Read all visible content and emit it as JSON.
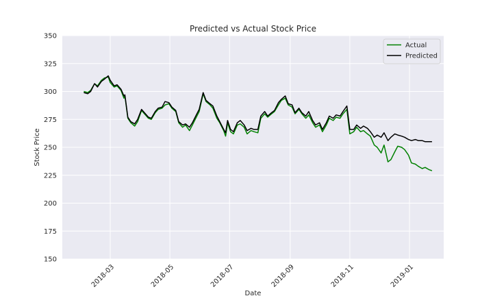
{
  "chart_data": {
    "type": "line",
    "title": "Predicted vs Actual Stock Price",
    "xlabel": "Date",
    "ylabel": "Stock Price",
    "ylim": [
      150,
      350
    ],
    "xlim": [
      "2018-01-11",
      "2019-02-05"
    ],
    "yticks": [
      150,
      175,
      200,
      225,
      250,
      275,
      300,
      325,
      350
    ],
    "xticks": [
      "2018-03",
      "2018-05",
      "2018-07",
      "2018-09",
      "2018-11",
      "2019-01"
    ],
    "grid": true,
    "legend_position": "upper right",
    "series": [
      {
        "name": "Actual",
        "color": "#008000",
        "points": [
          [
            "2018-02-02",
            300
          ],
          [
            "2018-02-06",
            299
          ],
          [
            "2018-02-09",
            301
          ],
          [
            "2018-02-13",
            307
          ],
          [
            "2018-02-16",
            305
          ],
          [
            "2018-02-20",
            310
          ],
          [
            "2018-02-23",
            312
          ],
          [
            "2018-02-27",
            313
          ],
          [
            "2018-03-01",
            308
          ],
          [
            "2018-03-05",
            304
          ],
          [
            "2018-03-08",
            305
          ],
          [
            "2018-03-12",
            301
          ],
          [
            "2018-03-15",
            294
          ],
          [
            "2018-03-16",
            296
          ],
          [
            "2018-03-19",
            276
          ],
          [
            "2018-03-22",
            272
          ],
          [
            "2018-03-26",
            269
          ],
          [
            "2018-03-29",
            273
          ],
          [
            "2018-04-02",
            283
          ],
          [
            "2018-04-05",
            280
          ],
          [
            "2018-04-09",
            276
          ],
          [
            "2018-04-12",
            275
          ],
          [
            "2018-04-16",
            281
          ],
          [
            "2018-04-19",
            284
          ],
          [
            "2018-04-23",
            285
          ],
          [
            "2018-04-26",
            288
          ],
          [
            "2018-04-30",
            289
          ],
          [
            "2018-05-03",
            285
          ],
          [
            "2018-05-07",
            282
          ],
          [
            "2018-05-10",
            272
          ],
          [
            "2018-05-14",
            268
          ],
          [
            "2018-05-17",
            270
          ],
          [
            "2018-05-21",
            265
          ],
          [
            "2018-05-24",
            270
          ],
          [
            "2018-05-28",
            277
          ],
          [
            "2018-05-31",
            282
          ],
          [
            "2018-06-04",
            298
          ],
          [
            "2018-06-07",
            291
          ],
          [
            "2018-06-11",
            288
          ],
          [
            "2018-06-14",
            285
          ],
          [
            "2018-06-18",
            276
          ],
          [
            "2018-06-21",
            272
          ],
          [
            "2018-06-25",
            265
          ],
          [
            "2018-06-27",
            260
          ],
          [
            "2018-06-29",
            272
          ],
          [
            "2018-07-02",
            264
          ],
          [
            "2018-07-05",
            262
          ],
          [
            "2018-07-09",
            270
          ],
          [
            "2018-07-12",
            271
          ],
          [
            "2018-07-16",
            268
          ],
          [
            "2018-07-19",
            262
          ],
          [
            "2018-07-23",
            265
          ],
          [
            "2018-07-26",
            264
          ],
          [
            "2018-07-30",
            263
          ],
          [
            "2018-08-02",
            276
          ],
          [
            "2018-08-06",
            280
          ],
          [
            "2018-08-09",
            277
          ],
          [
            "2018-08-13",
            280
          ],
          [
            "2018-08-16",
            282
          ],
          [
            "2018-08-20",
            288
          ],
          [
            "2018-08-23",
            292
          ],
          [
            "2018-08-27",
            294
          ],
          [
            "2018-08-30",
            288
          ],
          [
            "2018-09-03",
            286
          ],
          [
            "2018-09-06",
            280
          ],
          [
            "2018-09-10",
            284
          ],
          [
            "2018-09-13",
            280
          ],
          [
            "2018-09-17",
            276
          ],
          [
            "2018-09-20",
            279
          ],
          [
            "2018-09-24",
            272
          ],
          [
            "2018-09-27",
            268
          ],
          [
            "2018-10-01",
            270
          ],
          [
            "2018-10-04",
            264
          ],
          [
            "2018-10-08",
            270
          ],
          [
            "2018-10-11",
            276
          ],
          [
            "2018-10-15",
            274
          ],
          [
            "2018-10-18",
            277
          ],
          [
            "2018-10-22",
            276
          ],
          [
            "2018-10-25",
            280
          ],
          [
            "2018-10-29",
            284
          ],
          [
            "2018-11-01",
            262
          ],
          [
            "2018-11-05",
            264
          ],
          [
            "2018-11-08",
            268
          ],
          [
            "2018-11-12",
            264
          ],
          [
            "2018-11-15",
            265
          ],
          [
            "2018-11-19",
            262
          ],
          [
            "2018-11-22",
            260
          ],
          [
            "2018-11-26",
            252
          ],
          [
            "2018-11-29",
            250
          ],
          [
            "2018-12-03",
            245
          ],
          [
            "2018-12-06",
            252
          ],
          [
            "2018-12-10",
            237
          ],
          [
            "2018-12-13",
            239
          ],
          [
            "2018-12-17",
            246
          ],
          [
            "2018-12-20",
            251
          ],
          [
            "2018-12-24",
            250
          ],
          [
            "2018-12-27",
            248
          ],
          [
            "2018-12-31",
            243
          ],
          [
            "2019-01-03",
            236
          ],
          [
            "2019-01-07",
            235
          ],
          [
            "2019-01-10",
            233
          ],
          [
            "2019-01-14",
            231
          ],
          [
            "2019-01-17",
            232
          ],
          [
            "2019-01-21",
            230
          ],
          [
            "2019-01-24",
            229
          ]
        ]
      },
      {
        "name": "Predicted",
        "color": "#000000",
        "points": [
          [
            "2018-02-02",
            299
          ],
          [
            "2018-02-06",
            298
          ],
          [
            "2018-02-09",
            300
          ],
          [
            "2018-02-13",
            307
          ],
          [
            "2018-02-16",
            304
          ],
          [
            "2018-02-20",
            309
          ],
          [
            "2018-02-23",
            311
          ],
          [
            "2018-02-27",
            314
          ],
          [
            "2018-03-01",
            310
          ],
          [
            "2018-03-05",
            305
          ],
          [
            "2018-03-08",
            306
          ],
          [
            "2018-03-12",
            302
          ],
          [
            "2018-03-15",
            296
          ],
          [
            "2018-03-16",
            297
          ],
          [
            "2018-03-19",
            277
          ],
          [
            "2018-03-22",
            273
          ],
          [
            "2018-03-26",
            271
          ],
          [
            "2018-03-29",
            275
          ],
          [
            "2018-04-02",
            284
          ],
          [
            "2018-04-05",
            281
          ],
          [
            "2018-04-09",
            277
          ],
          [
            "2018-04-12",
            276
          ],
          [
            "2018-04-16",
            282
          ],
          [
            "2018-04-19",
            285
          ],
          [
            "2018-04-23",
            286
          ],
          [
            "2018-04-26",
            291
          ],
          [
            "2018-04-30",
            290
          ],
          [
            "2018-05-03",
            286
          ],
          [
            "2018-05-07",
            283
          ],
          [
            "2018-05-10",
            273
          ],
          [
            "2018-05-14",
            270
          ],
          [
            "2018-05-17",
            271
          ],
          [
            "2018-05-21",
            268
          ],
          [
            "2018-05-24",
            272
          ],
          [
            "2018-05-28",
            279
          ],
          [
            "2018-05-31",
            284
          ],
          [
            "2018-06-04",
            299
          ],
          [
            "2018-06-07",
            292
          ],
          [
            "2018-06-11",
            289
          ],
          [
            "2018-06-14",
            287
          ],
          [
            "2018-06-18",
            278
          ],
          [
            "2018-06-21",
            273
          ],
          [
            "2018-06-25",
            266
          ],
          [
            "2018-06-27",
            263
          ],
          [
            "2018-06-29",
            274
          ],
          [
            "2018-07-02",
            266
          ],
          [
            "2018-07-05",
            264
          ],
          [
            "2018-07-09",
            272
          ],
          [
            "2018-07-12",
            274
          ],
          [
            "2018-07-16",
            270
          ],
          [
            "2018-07-19",
            265
          ],
          [
            "2018-07-23",
            267
          ],
          [
            "2018-07-26",
            266
          ],
          [
            "2018-07-30",
            266
          ],
          [
            "2018-08-02",
            278
          ],
          [
            "2018-08-06",
            282
          ],
          [
            "2018-08-09",
            278
          ],
          [
            "2018-08-13",
            281
          ],
          [
            "2018-08-16",
            283
          ],
          [
            "2018-08-20",
            290
          ],
          [
            "2018-08-23",
            293
          ],
          [
            "2018-08-27",
            296
          ],
          [
            "2018-08-30",
            289
          ],
          [
            "2018-09-03",
            288
          ],
          [
            "2018-09-06",
            281
          ],
          [
            "2018-09-10",
            285
          ],
          [
            "2018-09-13",
            281
          ],
          [
            "2018-09-17",
            278
          ],
          [
            "2018-09-20",
            282
          ],
          [
            "2018-09-24",
            274
          ],
          [
            "2018-09-27",
            270
          ],
          [
            "2018-10-01",
            272
          ],
          [
            "2018-10-04",
            266
          ],
          [
            "2018-10-08",
            272
          ],
          [
            "2018-10-11",
            278
          ],
          [
            "2018-10-15",
            276
          ],
          [
            "2018-10-18",
            279
          ],
          [
            "2018-10-22",
            278
          ],
          [
            "2018-10-25",
            282
          ],
          [
            "2018-10-29",
            287
          ],
          [
            "2018-11-01",
            266
          ],
          [
            "2018-11-05",
            266
          ],
          [
            "2018-11-08",
            270
          ],
          [
            "2018-11-12",
            267
          ],
          [
            "2018-11-15",
            269
          ],
          [
            "2018-11-19",
            267
          ],
          [
            "2018-11-22",
            264
          ],
          [
            "2018-11-26",
            259
          ],
          [
            "2018-11-29",
            261
          ],
          [
            "2018-12-03",
            259
          ],
          [
            "2018-12-06",
            263
          ],
          [
            "2018-12-10",
            256
          ],
          [
            "2018-12-13",
            259
          ],
          [
            "2018-12-17",
            262
          ],
          [
            "2018-12-20",
            261
          ],
          [
            "2018-12-24",
            260
          ],
          [
            "2018-12-27",
            259
          ],
          [
            "2018-12-31",
            257
          ],
          [
            "2019-01-03",
            256
          ],
          [
            "2019-01-07",
            257
          ],
          [
            "2019-01-10",
            256
          ],
          [
            "2019-01-14",
            256
          ],
          [
            "2019-01-17",
            255
          ],
          [
            "2019-01-21",
            255
          ],
          [
            "2019-01-24",
            255
          ]
        ]
      }
    ]
  }
}
